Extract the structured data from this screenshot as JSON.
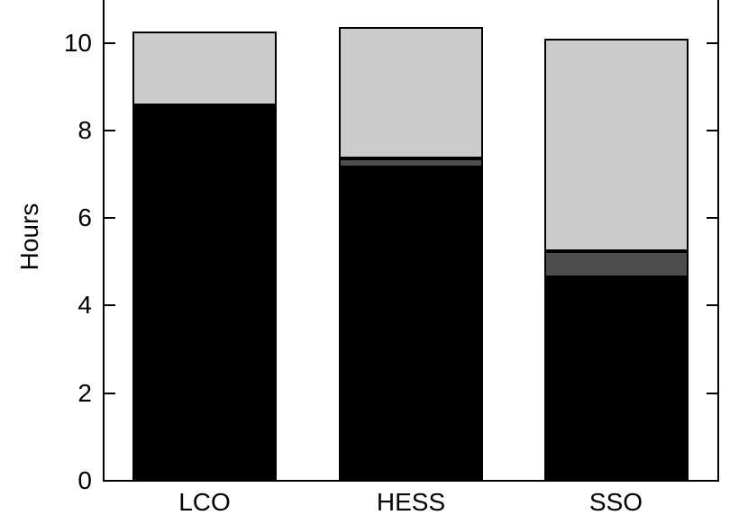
{
  "chart_data": {
    "type": "bar",
    "stacked": true,
    "title": "",
    "xlabel": "",
    "ylabel": "Hours",
    "categories": [
      "LCO",
      "HESS",
      "SSO"
    ],
    "series": [
      {
        "name": "black-segment",
        "color": "#000000",
        "values": [
          8.5,
          7.15,
          4.65
        ]
      },
      {
        "name": "dark-gray-segment",
        "color": "#4d4d4d",
        "values": [
          0.08,
          0.2,
          0.6
        ]
      },
      {
        "name": "light-gray-segment",
        "color": "#cccccc",
        "values": [
          1.67,
          3.0,
          4.85
        ]
      }
    ],
    "totals": [
      10.25,
      10.35,
      10.1
    ],
    "y_ticks": [
      0,
      2,
      4,
      6,
      8,
      10
    ],
    "ylim": [
      0,
      11
    ],
    "grid": false,
    "legend": "none",
    "axis_color": "#000000",
    "background": "#ffffff",
    "bar_border_color": "#000000"
  }
}
